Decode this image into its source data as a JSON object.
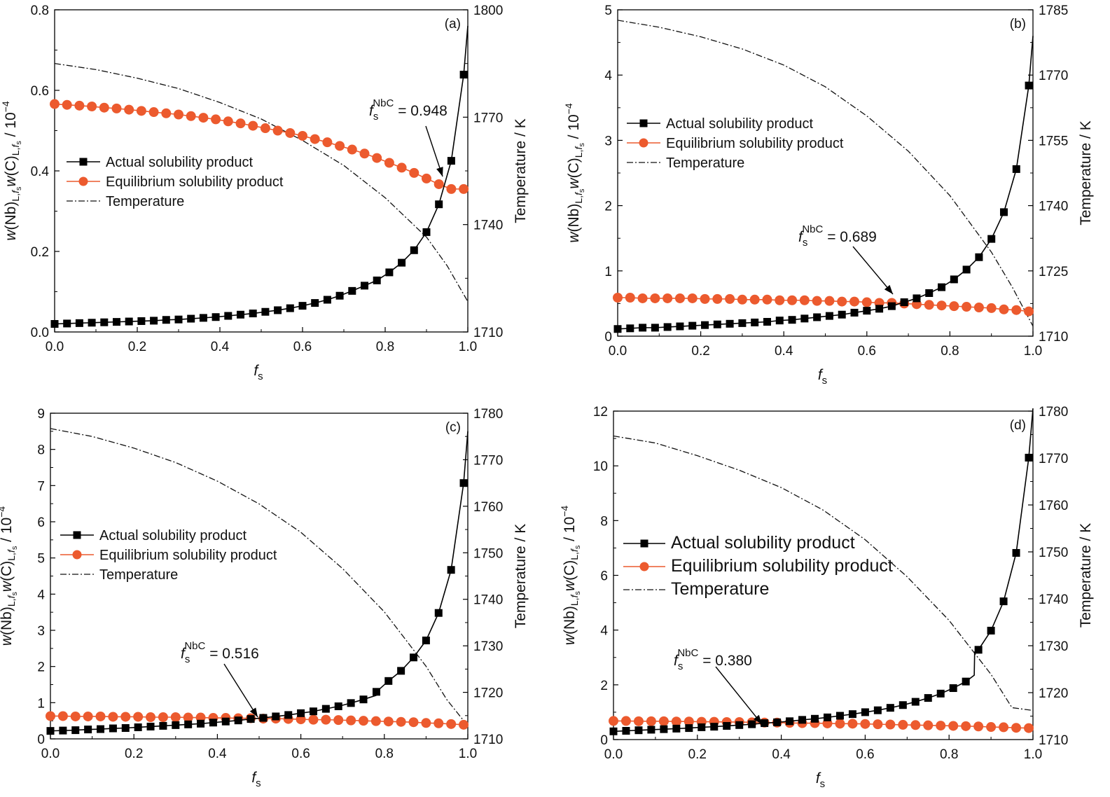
{
  "chart_data": [
    {
      "type": "line",
      "panel_label": "(a)",
      "xlabel": "fs",
      "ylabel_left": "w(Nb)L,fs w(C)L,fs / 10^-4",
      "ylabel_right": "Temperature / K",
      "xlim": [
        0,
        1.0
      ],
      "ylim_left": [
        0,
        0.8
      ],
      "ylim_right": [
        1710,
        1800
      ],
      "xticks": [
        "0.0",
        "0.2",
        "0.4",
        "0.6",
        "0.8",
        "1.0"
      ],
      "yticks_left": [
        "0.0",
        "0.2",
        "0.4",
        "0.6",
        "0.8"
      ],
      "yticks_right": [
        "1710",
        "1740",
        "1770",
        "1800"
      ],
      "legend": [
        "Actual solubility product",
        "Equilibrium solubility product",
        "Temperature"
      ],
      "legend_placement": "middle-left",
      "annotation": {
        "text": "= 0.948",
        "symbol": "f",
        "sub": "s",
        "sup": "NbC",
        "at_x": 0.948
      },
      "series": [
        {
          "name": "Actual solubility product",
          "x": [
            0.0,
            0.03,
            0.06,
            0.09,
            0.12,
            0.15,
            0.18,
            0.21,
            0.24,
            0.27,
            0.3,
            0.33,
            0.36,
            0.39,
            0.42,
            0.45,
            0.48,
            0.51,
            0.54,
            0.57,
            0.6,
            0.63,
            0.66,
            0.69,
            0.72,
            0.75,
            0.78,
            0.81,
            0.84,
            0.87,
            0.9,
            0.93,
            0.96,
            0.99,
            1.0
          ],
          "y": [
            0.02,
            0.021,
            0.022,
            0.023,
            0.024,
            0.025,
            0.026,
            0.027,
            0.028,
            0.03,
            0.031,
            0.033,
            0.035,
            0.037,
            0.04,
            0.043,
            0.046,
            0.05,
            0.054,
            0.059,
            0.065,
            0.072,
            0.08,
            0.09,
            0.102,
            0.115,
            0.128,
            0.148,
            0.172,
            0.203,
            0.248,
            0.317,
            0.425,
            0.639,
            0.76
          ]
        },
        {
          "name": "Equilibrium solubility product",
          "x": [
            0.0,
            0.03,
            0.06,
            0.09,
            0.12,
            0.15,
            0.18,
            0.21,
            0.24,
            0.27,
            0.3,
            0.33,
            0.36,
            0.39,
            0.42,
            0.45,
            0.48,
            0.51,
            0.54,
            0.57,
            0.6,
            0.63,
            0.66,
            0.69,
            0.72,
            0.75,
            0.78,
            0.81,
            0.84,
            0.87,
            0.9,
            0.93,
            0.96,
            0.99
          ],
          "y": [
            0.566,
            0.564,
            0.562,
            0.56,
            0.557,
            0.555,
            0.552,
            0.549,
            0.546,
            0.543,
            0.54,
            0.536,
            0.532,
            0.528,
            0.523,
            0.518,
            0.512,
            0.506,
            0.5,
            0.494,
            0.487,
            0.479,
            0.471,
            0.462,
            0.453,
            0.443,
            0.432,
            0.42,
            0.408,
            0.395,
            0.381,
            0.367,
            0.355,
            0.355
          ]
        },
        {
          "name": "Temperature",
          "axis": "right",
          "x": [
            0.0,
            0.1,
            0.2,
            0.3,
            0.4,
            0.5,
            0.6,
            0.7,
            0.8,
            0.9,
            0.95,
            1.0
          ],
          "y": [
            1785,
            1783.3,
            1780.9,
            1778,
            1774.1,
            1769.5,
            1763.5,
            1756.5,
            1747.5,
            1736.5,
            1728.5,
            1718.5
          ]
        }
      ]
    },
    {
      "type": "line",
      "panel_label": "(b)",
      "xlabel": "fs",
      "ylabel_left": "w(Nb)L,fs w(C)L,fs / 10^-4",
      "ylabel_right": "Temperature / K",
      "xlim": [
        0,
        1.0
      ],
      "ylim_left": [
        0,
        5
      ],
      "ylim_right": [
        1710,
        1785
      ],
      "xticks": [
        "0.0",
        "0.2",
        "0.4",
        "0.6",
        "0.8",
        "1.0"
      ],
      "yticks_left": [
        "0",
        "1",
        "2",
        "3",
        "4",
        "5"
      ],
      "yticks_right": [
        "1710",
        "1725",
        "1740",
        "1755",
        "1770",
        "1785"
      ],
      "legend": [
        "Actual solubility product",
        "Equilibrium solubility product",
        "Temperature"
      ],
      "legend_placement": "middle-left",
      "annotation": {
        "text": "= 0.689",
        "symbol": "f",
        "sub": "s",
        "sup": "NbC",
        "at_x": 0.689
      },
      "series": [
        {
          "name": "Actual solubility product",
          "x": [
            0.0,
            0.03,
            0.06,
            0.09,
            0.12,
            0.15,
            0.18,
            0.21,
            0.24,
            0.27,
            0.3,
            0.33,
            0.36,
            0.39,
            0.42,
            0.45,
            0.48,
            0.51,
            0.54,
            0.57,
            0.6,
            0.63,
            0.66,
            0.69,
            0.72,
            0.75,
            0.78,
            0.81,
            0.84,
            0.87,
            0.9,
            0.93,
            0.96,
            0.99,
            1.0
          ],
          "y": [
            0.11,
            0.12,
            0.13,
            0.13,
            0.14,
            0.15,
            0.16,
            0.17,
            0.18,
            0.19,
            0.2,
            0.21,
            0.22,
            0.24,
            0.25,
            0.27,
            0.29,
            0.31,
            0.33,
            0.36,
            0.39,
            0.42,
            0.46,
            0.52,
            0.58,
            0.66,
            0.75,
            0.87,
            1.02,
            1.21,
            1.49,
            1.9,
            2.56,
            3.84,
            4.6
          ]
        },
        {
          "name": "Equilibrium solubility product",
          "x": [
            0.0,
            0.03,
            0.06,
            0.09,
            0.12,
            0.15,
            0.18,
            0.21,
            0.24,
            0.27,
            0.3,
            0.33,
            0.36,
            0.39,
            0.42,
            0.45,
            0.48,
            0.51,
            0.54,
            0.57,
            0.6,
            0.63,
            0.66,
            0.69,
            0.72,
            0.75,
            0.78,
            0.81,
            0.84,
            0.87,
            0.9,
            0.93,
            0.96,
            0.99
          ],
          "y": [
            0.59,
            0.59,
            0.58,
            0.58,
            0.58,
            0.58,
            0.58,
            0.57,
            0.57,
            0.57,
            0.56,
            0.56,
            0.56,
            0.55,
            0.55,
            0.55,
            0.54,
            0.54,
            0.53,
            0.53,
            0.52,
            0.51,
            0.51,
            0.5,
            0.49,
            0.48,
            0.47,
            0.46,
            0.45,
            0.44,
            0.43,
            0.41,
            0.4,
            0.38
          ]
        },
        {
          "name": "Temperature",
          "axis": "right",
          "x": [
            0.0,
            0.1,
            0.2,
            0.3,
            0.4,
            0.5,
            0.6,
            0.7,
            0.8,
            0.9,
            0.95,
            1.0
          ],
          "y": [
            1782.6,
            1781,
            1778.8,
            1776,
            1772.3,
            1767.3,
            1760.6,
            1752.5,
            1742.3,
            1729.3,
            1721.3,
            1712.3
          ]
        }
      ]
    },
    {
      "type": "line",
      "panel_label": "(c)",
      "xlabel": "fs",
      "ylabel_left": "w(Nb)L,fs w(C)L,fs / 10^-4",
      "ylabel_right": "Temperature / K",
      "xlim": [
        0,
        1.0
      ],
      "ylim_left": [
        0,
        9
      ],
      "ylim_right": [
        1710,
        1780
      ],
      "xticks": [
        "0.0",
        "0.2",
        "0.4",
        "0.6",
        "0.8",
        "1.0"
      ],
      "yticks_left": [
        "0",
        "1",
        "2",
        "3",
        "4",
        "5",
        "6",
        "7",
        "8",
        "9"
      ],
      "yticks_right": [
        "1710",
        "1720",
        "1730",
        "1740",
        "1750",
        "1760",
        "1770",
        "1780"
      ],
      "legend": [
        "Actual solubility product",
        "Equilibrium solubility product",
        "Temperature"
      ],
      "legend_placement": "middle-left",
      "annotation": {
        "text": "= 0.516",
        "symbol": "f",
        "sub": "s",
        "sup": "NbC",
        "at_x": 0.516
      },
      "series": [
        {
          "name": "Actual solubility product",
          "x": [
            0.0,
            0.03,
            0.06,
            0.09,
            0.12,
            0.15,
            0.18,
            0.21,
            0.24,
            0.27,
            0.3,
            0.33,
            0.36,
            0.39,
            0.42,
            0.45,
            0.48,
            0.51,
            0.54,
            0.57,
            0.6,
            0.63,
            0.66,
            0.69,
            0.72,
            0.75,
            0.78,
            0.781,
            0.81,
            0.84,
            0.87,
            0.9,
            0.93,
            0.96,
            0.99,
            1.0
          ],
          "y": [
            0.22,
            0.23,
            0.24,
            0.26,
            0.27,
            0.29,
            0.3,
            0.32,
            0.34,
            0.36,
            0.38,
            0.4,
            0.42,
            0.45,
            0.48,
            0.51,
            0.55,
            0.58,
            0.62,
            0.66,
            0.71,
            0.76,
            0.83,
            0.9,
            0.99,
            1.09,
            1.2,
            1.3,
            1.6,
            1.88,
            2.25,
            2.72,
            3.48,
            4.67,
            7.07,
            8.5
          ]
        },
        {
          "name": "Equilibrium solubility product",
          "x": [
            0.0,
            0.03,
            0.06,
            0.09,
            0.12,
            0.15,
            0.18,
            0.21,
            0.24,
            0.27,
            0.3,
            0.33,
            0.36,
            0.39,
            0.42,
            0.45,
            0.48,
            0.51,
            0.54,
            0.57,
            0.6,
            0.63,
            0.66,
            0.69,
            0.72,
            0.75,
            0.78,
            0.81,
            0.84,
            0.87,
            0.9,
            0.93,
            0.96,
            0.99
          ],
          "y": [
            0.63,
            0.63,
            0.62,
            0.62,
            0.62,
            0.61,
            0.61,
            0.61,
            0.6,
            0.6,
            0.6,
            0.59,
            0.59,
            0.58,
            0.58,
            0.57,
            0.57,
            0.56,
            0.56,
            0.55,
            0.54,
            0.53,
            0.53,
            0.52,
            0.51,
            0.5,
            0.49,
            0.48,
            0.47,
            0.46,
            0.44,
            0.43,
            0.41,
            0.39
          ]
        },
        {
          "name": "Temperature",
          "axis": "right",
          "x": [
            0.0,
            0.1,
            0.2,
            0.3,
            0.4,
            0.5,
            0.6,
            0.7,
            0.8,
            0.9,
            0.95,
            1.0
          ],
          "y": [
            1776.7,
            1775,
            1772.5,
            1769.4,
            1765.4,
            1760.5,
            1754.4,
            1746.6,
            1737.3,
            1725.6,
            1718.4,
            1712.8
          ]
        }
      ]
    },
    {
      "type": "line",
      "panel_label": "(d)",
      "xlabel": "fs",
      "ylabel_left": "w(Nb)L,fs w(C)L,fs / 10^-4",
      "ylabel_right": "Temperature / K",
      "xlim": [
        0,
        1.0
      ],
      "ylim_left": [
        0,
        12
      ],
      "ylim_right": [
        1710,
        1780
      ],
      "xticks": [
        "0.0",
        "0.2",
        "0.4",
        "0.6",
        "0.8",
        "1.0"
      ],
      "yticks_left": [
        "0",
        "2",
        "4",
        "6",
        "8",
        "10",
        "12"
      ],
      "yticks_right": [
        "1710",
        "1720",
        "1730",
        "1740",
        "1750",
        "1760",
        "1770",
        "1780"
      ],
      "legend": [
        "Actual solubility product",
        "Equilibrium solubility product",
        "Temperature"
      ],
      "legend_placement": "middle-left",
      "annotation": {
        "text": "= 0.380",
        "symbol": "f",
        "sub": "s",
        "sup": "NbC",
        "at_x": 0.38
      },
      "series": [
        {
          "name": "Actual solubility product",
          "x": [
            0.0,
            0.03,
            0.06,
            0.09,
            0.12,
            0.15,
            0.18,
            0.21,
            0.24,
            0.27,
            0.3,
            0.33,
            0.36,
            0.39,
            0.42,
            0.45,
            0.48,
            0.51,
            0.54,
            0.57,
            0.6,
            0.63,
            0.66,
            0.69,
            0.72,
            0.75,
            0.78,
            0.81,
            0.84,
            0.86,
            0.861,
            0.87,
            0.9,
            0.93,
            0.96,
            0.99,
            1.0
          ],
          "y": [
            0.3,
            0.32,
            0.34,
            0.36,
            0.38,
            0.4,
            0.42,
            0.45,
            0.47,
            0.5,
            0.53,
            0.56,
            0.6,
            0.63,
            0.67,
            0.72,
            0.76,
            0.81,
            0.87,
            0.93,
            1.0,
            1.07,
            1.16,
            1.26,
            1.38,
            1.52,
            1.68,
            1.88,
            2.12,
            2.35,
            3.2,
            3.28,
            3.98,
            5.05,
            6.82,
            10.3,
            12.1
          ]
        },
        {
          "name": "Equilibrium solubility product",
          "x": [
            0.0,
            0.03,
            0.06,
            0.09,
            0.12,
            0.15,
            0.18,
            0.21,
            0.24,
            0.27,
            0.3,
            0.33,
            0.36,
            0.39,
            0.42,
            0.45,
            0.48,
            0.51,
            0.54,
            0.57,
            0.6,
            0.63,
            0.66,
            0.69,
            0.72,
            0.75,
            0.78,
            0.81,
            0.84,
            0.87,
            0.9,
            0.93,
            0.96,
            0.99
          ],
          "y": [
            0.68,
            0.68,
            0.67,
            0.67,
            0.67,
            0.66,
            0.66,
            0.65,
            0.65,
            0.64,
            0.64,
            0.63,
            0.62,
            0.62,
            0.61,
            0.6,
            0.6,
            0.59,
            0.58,
            0.58,
            0.57,
            0.56,
            0.55,
            0.54,
            0.53,
            0.52,
            0.51,
            0.5,
            0.49,
            0.48,
            0.46,
            0.45,
            0.43,
            0.42
          ]
        },
        {
          "name": "Temperature",
          "axis": "right",
          "x": [
            0.0,
            0.1,
            0.2,
            0.3,
            0.4,
            0.5,
            0.6,
            0.7,
            0.8,
            0.9,
            0.95,
            1.0
          ],
          "y": [
            1774.7,
            1773.2,
            1770.5,
            1767.4,
            1763.7,
            1758.9,
            1752.6,
            1744.7,
            1735.4,
            1723.9,
            1716.8,
            1716.2
          ]
        }
      ]
    }
  ]
}
